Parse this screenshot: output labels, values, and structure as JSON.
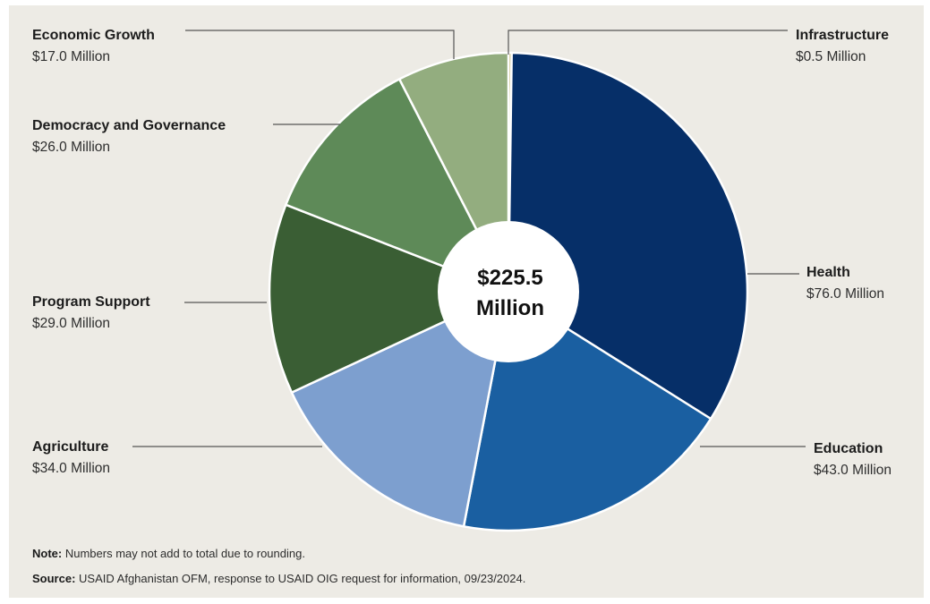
{
  "chart_data": {
    "type": "pie",
    "donut": true,
    "center_label": [
      "$225.5",
      "Million"
    ],
    "slices": [
      {
        "name": "Infrastructure",
        "value": 0.5,
        "value_label": "$0.5 Million",
        "color": "#c3b87a"
      },
      {
        "name": "Health",
        "value": 76.0,
        "value_label": "$76.0 Million",
        "color": "#062f68"
      },
      {
        "name": "Education",
        "value": 43.0,
        "value_label": "$43.0 Million",
        "color": "#1a5fa1"
      },
      {
        "name": "Agriculture",
        "value": 34.0,
        "value_label": "$34.0 Million",
        "color": "#7d9fcf"
      },
      {
        "name": "Program Support",
        "value": 29.0,
        "value_label": "$29.0 Million",
        "color": "#3a5e34"
      },
      {
        "name": "Democracy and Governance",
        "value": 26.0,
        "value_label": "$26.0 Million",
        "color": "#5e8a58"
      },
      {
        "name": "Economic Growth",
        "value": 17.0,
        "value_label": "$17.0 Million",
        "color": "#93ad7f"
      }
    ]
  },
  "note": {
    "label": "Note:",
    "text": "Numbers may not add to total due to rounding."
  },
  "source": {
    "label": "Source:",
    "text": "USAID Afghanistan OFM, response to USAID OIG request for information, 09/23/2024."
  }
}
